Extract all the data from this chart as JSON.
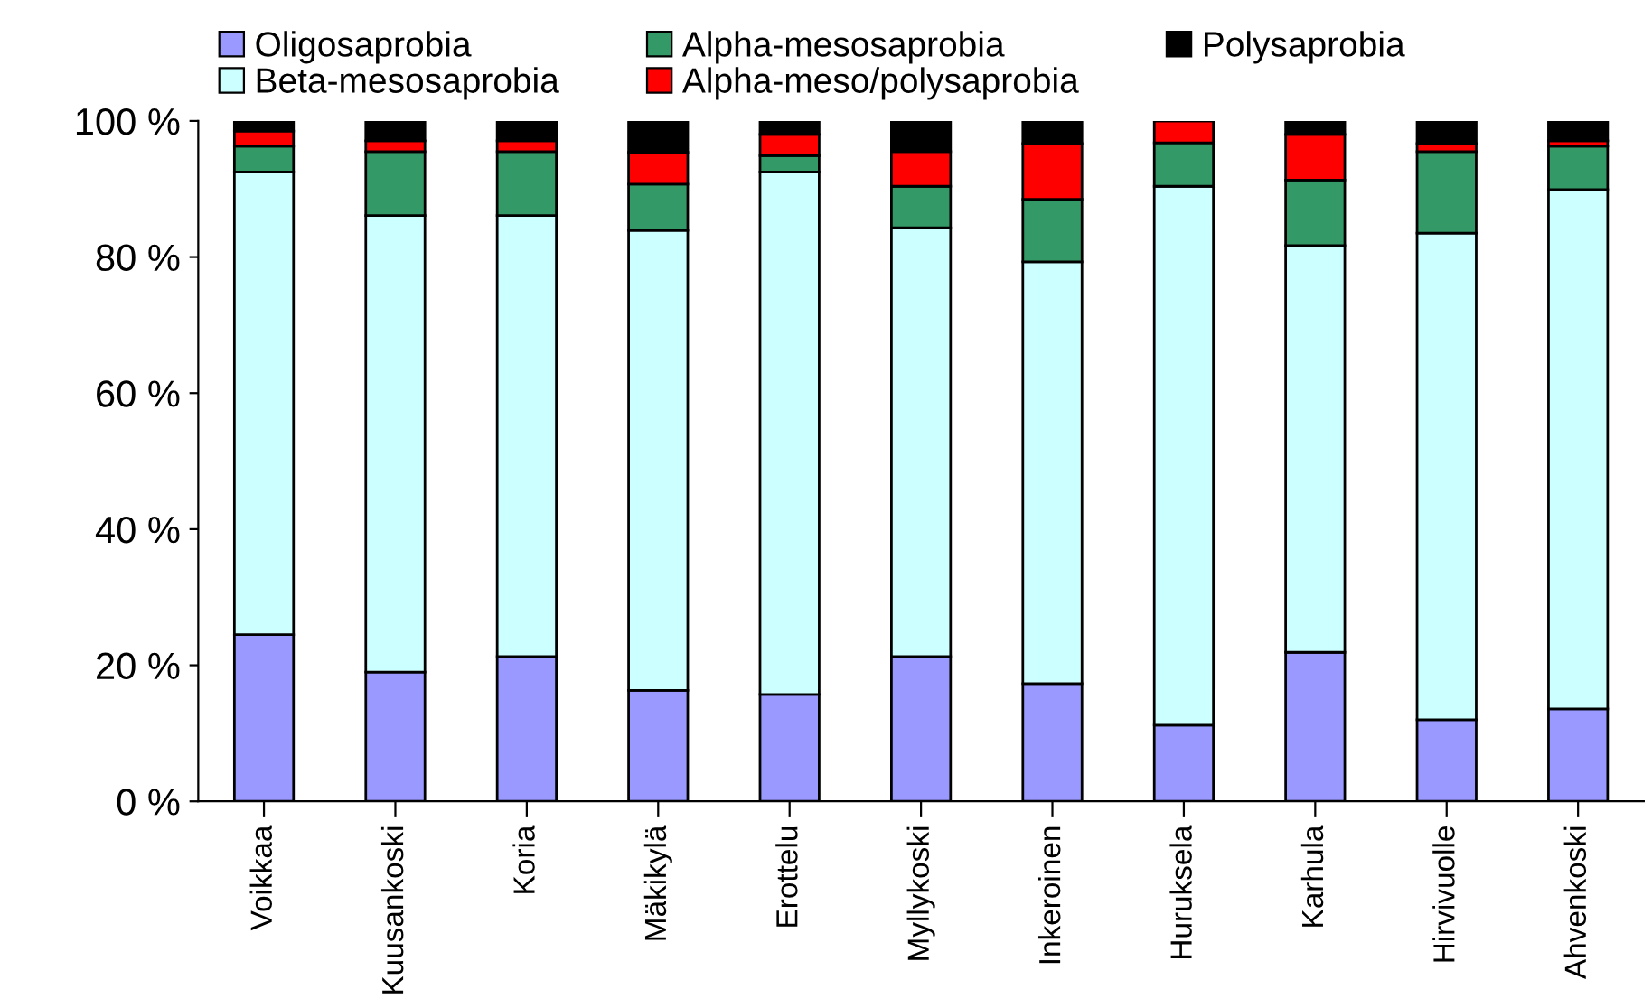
{
  "chart_data": {
    "type": "bar",
    "stacked": true,
    "categories": [
      "Voikkaa",
      "Kuusankoski",
      "Koria",
      "Mäkikylä",
      "Erottelu",
      "Myllykoski",
      "Inkeroinen",
      "Huruksela",
      "Karhula",
      "Hirvivuolle",
      "Ahvenkoski"
    ],
    "series": [
      {
        "name": "Oligosaprobia",
        "color": "#9999ff",
        "values": [
          24.5,
          19,
          21.3,
          16.3,
          15.7,
          21.3,
          17.3,
          11.2,
          21.9,
          12,
          13.6
        ]
      },
      {
        "name": "Beta-mesosaprobia",
        "color": "#ccffff",
        "values": [
          68,
          67.1,
          64.8,
          67.6,
          76.8,
          63,
          62,
          79.2,
          59.8,
          71.5,
          76.3
        ]
      },
      {
        "name": "Alpha-mesosaprobia",
        "color": "#339966",
        "values": [
          3.8,
          9.4,
          9.4,
          6.8,
          2.4,
          6.1,
          9.2,
          6.4,
          9.6,
          12,
          6.4
        ]
      },
      {
        "name": "Alpha-meso/polysaprobia",
        "color": "#ff0000",
        "values": [
          2.2,
          1.6,
          1.6,
          4.7,
          3.1,
          5.1,
          8.2,
          3.2,
          6.7,
          1.2,
          0.8
        ]
      },
      {
        "name": "Polysaprobia",
        "color": "#000000",
        "values": [
          1.5,
          2.9,
          2.9,
          4.6,
          2,
          4.5,
          3.3,
          0,
          2,
          3.3,
          2.9
        ]
      }
    ],
    "ylim": [
      0,
      100
    ],
    "yticks": [
      {
        "value": 0,
        "label": "0 %"
      },
      {
        "value": 20,
        "label": "20 %"
      },
      {
        "value": 40,
        "label": "40 %"
      },
      {
        "value": 60,
        "label": "60 %"
      },
      {
        "value": 80,
        "label": "80 %"
      },
      {
        "value": 100,
        "label": "100 %"
      }
    ],
    "legend": "top",
    "grid": false
  }
}
